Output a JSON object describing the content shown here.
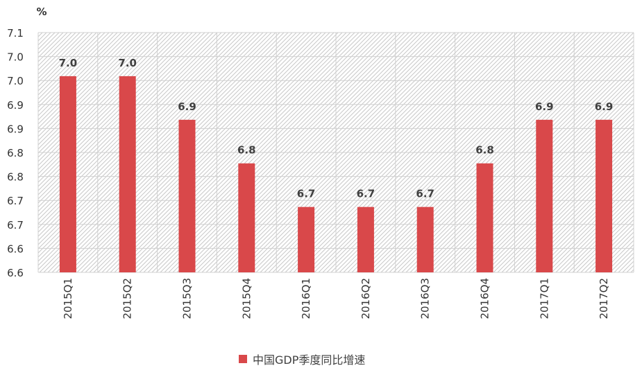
{
  "chart_data": {
    "type": "bar",
    "unit": "%",
    "categories": [
      "2015Q1",
      "2015Q2",
      "2015Q3",
      "2015Q4",
      "2016Q1",
      "2016Q2",
      "2016Q3",
      "2016Q4",
      "2017Q1",
      "2017Q2"
    ],
    "values": [
      7.0,
      7.0,
      6.9,
      6.8,
      6.7,
      6.7,
      6.7,
      6.8,
      6.9,
      6.9
    ],
    "value_labels": [
      "7.0",
      "7.0",
      "6.9",
      "6.8",
      "6.7",
      "6.7",
      "6.7",
      "6.8",
      "6.9",
      "6.9"
    ],
    "ylim": [
      6.55,
      7.1
    ],
    "y_ticks": [
      "6.6",
      "6.6",
      "6.7",
      "6.7",
      "6.8",
      "6.8",
      "6.9",
      "6.9",
      "7.0",
      "7.0",
      "7.1"
    ],
    "grid": true,
    "legend": "bottom",
    "series": [
      {
        "name": "中国GDP季度同比增速",
        "color": "#d9484a"
      }
    ]
  }
}
